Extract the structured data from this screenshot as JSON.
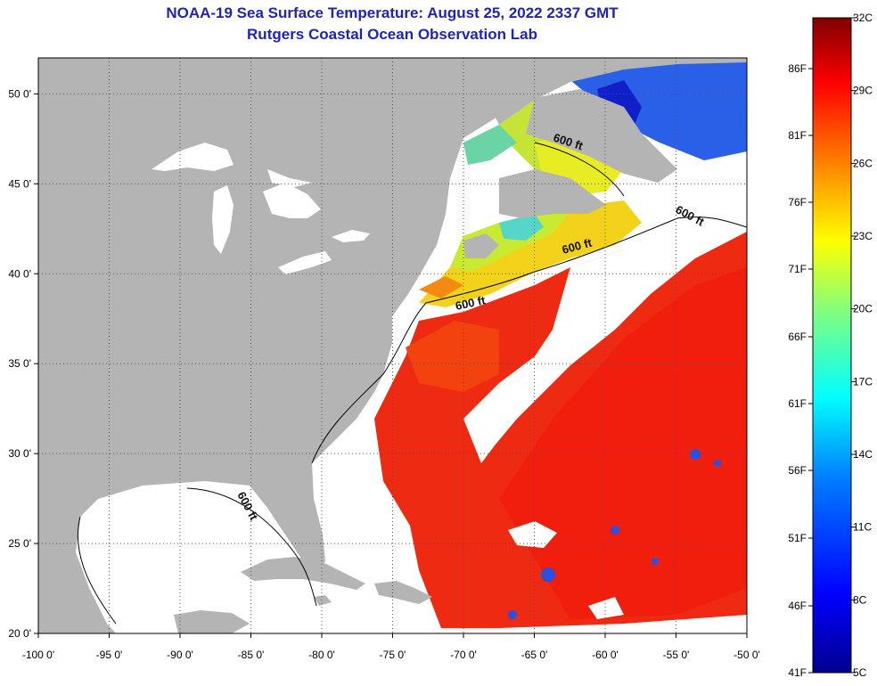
{
  "header": {
    "title_line1": "NOAA-19 Sea Surface Temperature:  August 25, 2022 2337 GMT",
    "title_line2": "Rutgers Coastal Ocean Observation Lab"
  },
  "map": {
    "lon_range": [
      -100,
      -50
    ],
    "lat_range": [
      20,
      52
    ],
    "lon_ticks": [
      {
        "value": -100,
        "label": "-100 0'"
      },
      {
        "value": -95,
        "label": "-95 0'"
      },
      {
        "value": -90,
        "label": "-90 0'"
      },
      {
        "value": -85,
        "label": "-85 0'"
      },
      {
        "value": -80,
        "label": "-80 0'"
      },
      {
        "value": -75,
        "label": "-75 0'"
      },
      {
        "value": -70,
        "label": "-70 0'"
      },
      {
        "value": -65,
        "label": "-65 0'"
      },
      {
        "value": -60,
        "label": "-60 0'"
      },
      {
        "value": -55,
        "label": "-55 0'"
      },
      {
        "value": -50,
        "label": "-50 0'"
      }
    ],
    "lat_ticks": [
      {
        "value": 20,
        "label": "20 0'"
      },
      {
        "value": 25,
        "label": "25 0'"
      },
      {
        "value": 30,
        "label": "30 0'"
      },
      {
        "value": 35,
        "label": "35 0'"
      },
      {
        "value": 40,
        "label": "40 0'"
      },
      {
        "value": 45,
        "label": "45 0'"
      },
      {
        "value": 50,
        "label": "50 0'"
      }
    ],
    "isobath_labels": [
      "600 ft",
      "600 ft",
      "600 ft",
      "600 ft",
      "600 ft"
    ],
    "colors": {
      "land": "#b4b4b4",
      "cloud": "#ffffff",
      "grid": "#555555"
    }
  },
  "colorbar": {
    "celsius_labels": [
      "32C",
      "29C",
      "26C",
      "23C",
      "20C",
      "17C",
      "14C",
      "11C",
      "8C",
      "5C"
    ],
    "fahrenheit_labels": [
      "86F",
      "81F",
      "76F",
      "71F",
      "66F",
      "61F",
      "56F",
      "51F",
      "46F",
      "41F"
    ]
  }
}
